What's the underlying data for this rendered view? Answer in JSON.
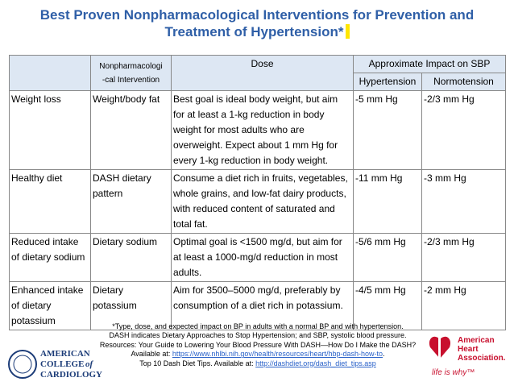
{
  "title": [
    "Best Proven Nonpharmacological Interventions for Prevention and",
    "Treatment of Hypertension*"
  ],
  "table": {
    "header": {
      "intervention": [
        "Nonpharmacologi",
        "-cal Intervention"
      ],
      "dose": "Dose",
      "impact": "Approximate Impact on SBP",
      "hypertension": "Hypertension",
      "normotension": "Normotension"
    },
    "rows": [
      [
        "Weight loss",
        "Weight/body fat",
        "Best goal is ideal body weight, but aim for at least a 1-kg reduction in body weight for most adults who are overweight. Expect about 1 mm Hg for every 1-kg reduction in body weight.",
        "-5 mm Hg",
        "-2/3 mm Hg"
      ],
      [
        "Healthy diet",
        "DASH dietary pattern",
        "Consume a diet rich in fruits, vegetables, whole grains, and low-fat dairy products, with reduced content of saturated and total fat.",
        "-11 mm Hg",
        "-3 mm Hg"
      ],
      [
        "Reduced intake of dietary sodium",
        "Dietary sodium",
        "Optimal goal is <1500 mg/d, but aim for at least a 1000-mg/d reduction in most adults.",
        "-5/6 mm Hg",
        "-2/3 mm Hg"
      ],
      [
        "Enhanced intake of dietary potassium",
        "Dietary potassium",
        "Aim for 3500–5000 mg/d, preferably by consumption of a diet rich in potassium.",
        "-4/5 mm Hg",
        "-2 mm Hg"
      ]
    ]
  },
  "footnotes": [
    {
      "text": "*Type, dose, and expected impact on BP in adults with a normal BP and with hypertension."
    },
    {
      "text": "DASH indicates Dietary Approaches to Stop Hypertension; and SBP, systolic blood pressure."
    },
    {
      "text": "Resources: Your Guide to Lowering Your Blood Pressure With DASH—How Do I Make the DASH?"
    },
    {
      "text": "Available at: ",
      "link": "https://www.nhlbi.nih.gov/health/resources/heart/hbp-dash-how-to",
      "after": "."
    },
    {
      "text": "Top 10 Dash Diet Tips. Available at: ",
      "link": "http://dashdiet.org/dash_diet_tips.asp"
    }
  ],
  "logos": {
    "acc": [
      "AMERICAN",
      "COLLEGE",
      "of",
      "CARDIOLOGY"
    ],
    "aha": [
      "American",
      "Heart",
      "Association."
    ],
    "aha_tagline": "life is why™"
  }
}
